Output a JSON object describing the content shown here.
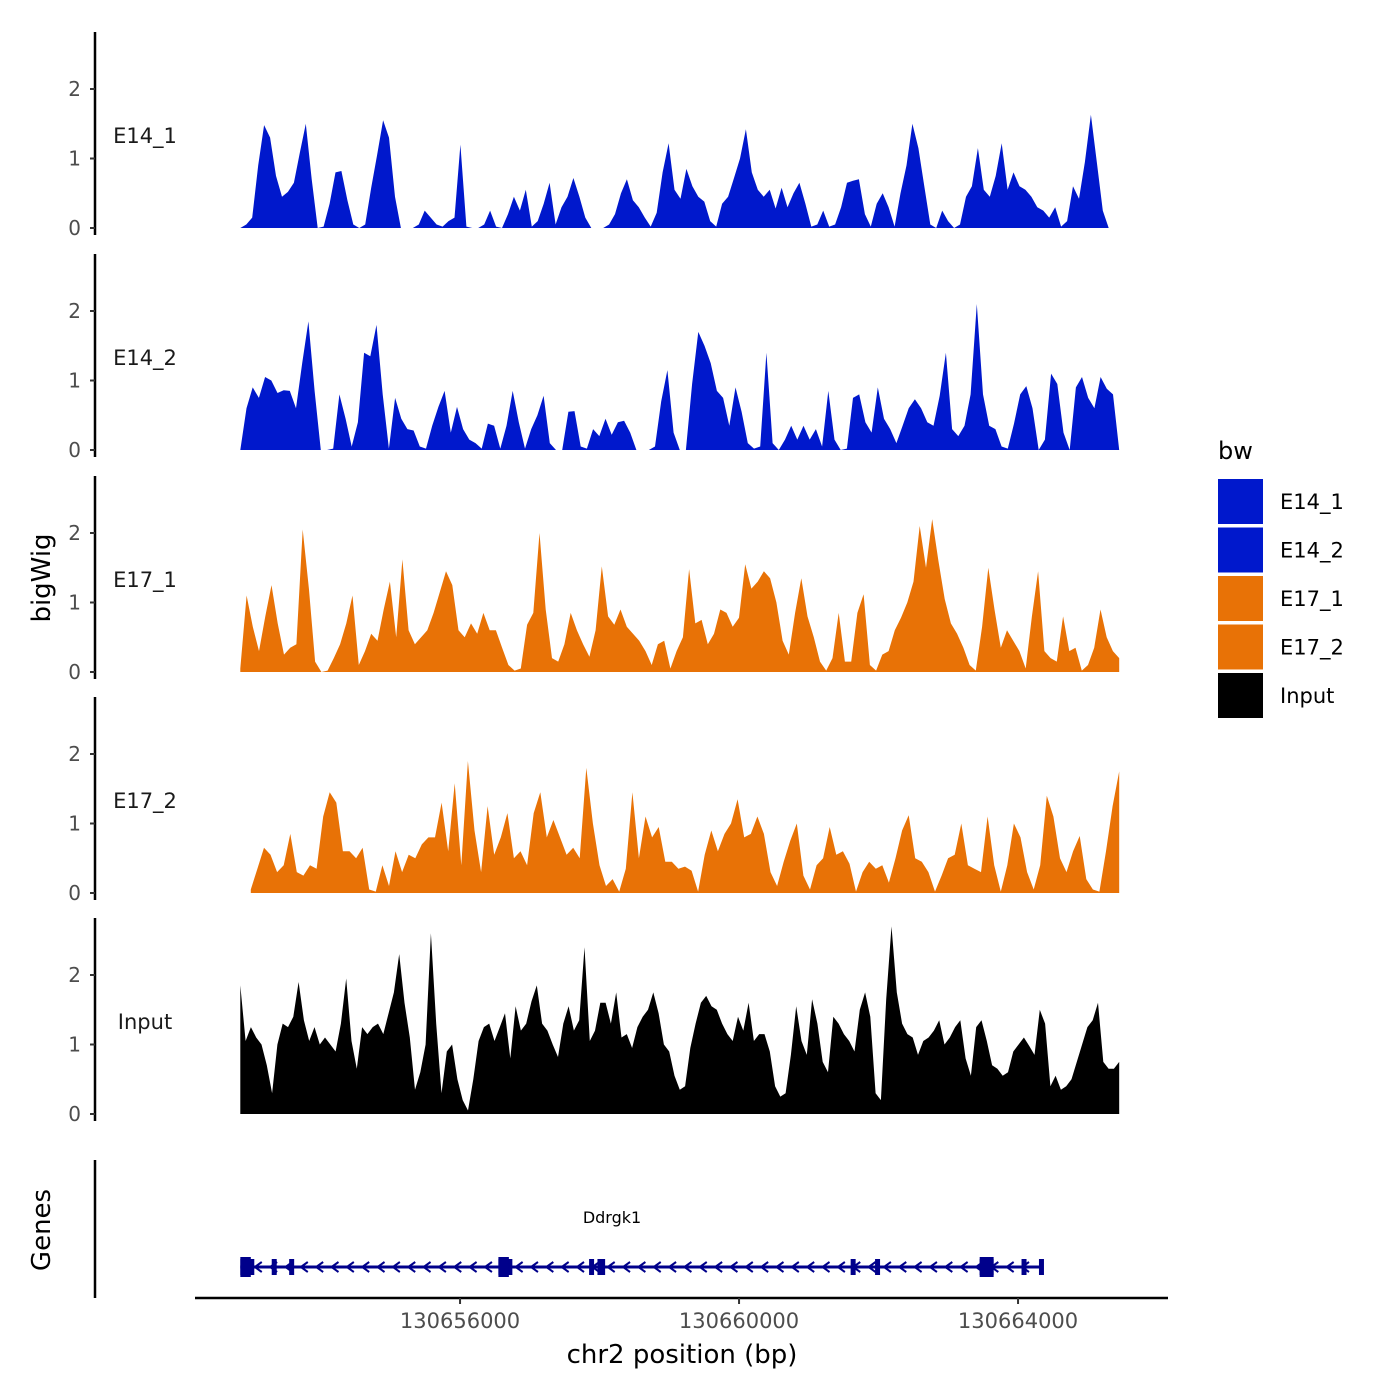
{
  "chart_data": {
    "type": "area",
    "title": "",
    "ylabel": "bigWig",
    "xlabel": "chr2 position (bp)",
    "genes_label": "Genes",
    "ylim": [
      0,
      2.8
    ],
    "y_ticks": [
      0,
      1,
      2
    ],
    "y_tick_labels": [
      "0",
      "1",
      "2"
    ],
    "xlim": [
      130652200,
      130666150
    ],
    "x_ticks": [
      130656000,
      130660000,
      130664000
    ],
    "x_tick_labels": [
      "130656000",
      "130660000",
      "130664000"
    ],
    "legend": {
      "title": "bw",
      "position": "right",
      "entries": [
        {
          "label": "E14_1",
          "color": "#0018cc"
        },
        {
          "label": "E14_2",
          "color": "#0018cc"
        },
        {
          "label": "E17_1",
          "color": "#e87206"
        },
        {
          "label": "E17_2",
          "color": "#e87206"
        },
        {
          "label": "Input",
          "color": "#000000"
        }
      ]
    },
    "tracks": [
      {
        "name": "E14_1",
        "label": "E14_1",
        "color": "#0018cc",
        "x_start": 130652850,
        "x_end": 130665300,
        "values": [
          0,
          0.05,
          0.15,
          0.9,
          1.48,
          1.3,
          0.75,
          0.45,
          0.52,
          0.65,
          1.08,
          1.5,
          0.7,
          0,
          0.02,
          0.35,
          0.8,
          0.82,
          0.4,
          0.05,
          0,
          0.05,
          0.58,
          1.05,
          1.55,
          1.3,
          0.45,
          0,
          0,
          0,
          0.05,
          0.25,
          0.15,
          0.05,
          0.02,
          0.1,
          0.15,
          1.2,
          0.02,
          0,
          0,
          0.05,
          0.25,
          0.02,
          0,
          0.2,
          0.45,
          0.25,
          0.55,
          0.02,
          0.1,
          0.35,
          0.65,
          0.05,
          0.3,
          0.45,
          0.72,
          0.45,
          0.15,
          0,
          0,
          0,
          0.05,
          0.2,
          0.5,
          0.7,
          0.4,
          0.3,
          0.15,
          0.02,
          0.22,
          0.8,
          1.22,
          0.55,
          0.42,
          0.85,
          0.6,
          0.45,
          0.38,
          0.1,
          0.02,
          0.35,
          0.45,
          0.72,
          1.0,
          1.42,
          0.8,
          0.55,
          0.45,
          0.55,
          0.28,
          0.58,
          0.3,
          0.5,
          0.65,
          0.35,
          0.02,
          0.05,
          0.25,
          0.02,
          0.05,
          0.3,
          0.65,
          0.68,
          0.7,
          0.2,
          0.02,
          0.35,
          0.5,
          0.3,
          0.02,
          0.5,
          0.9,
          1.5,
          1.15,
          0.6,
          0.05,
          0,
          0.25,
          0.1,
          0,
          0.05,
          0.45,
          0.6,
          1.15,
          0.55,
          0.45,
          0.75,
          1.22,
          0.55,
          0.8,
          0.6,
          0.55,
          0.45,
          0.3,
          0.25,
          0.15,
          0.3,
          0.02,
          0.1,
          0.6,
          0.42,
          0.95,
          1.63,
          0.95,
          0.25,
          0
        ]
      },
      {
        "name": "E14_2",
        "label": "E14_2",
        "color": "#0018cc",
        "x_start": 130652850,
        "x_end": 130665450,
        "values": [
          0,
          0.6,
          0.9,
          0.75,
          1.05,
          1.0,
          0.82,
          0.86,
          0.85,
          0.6,
          1.25,
          1.85,
          0.85,
          0,
          0,
          0.02,
          0.8,
          0.45,
          0.05,
          0.4,
          1.4,
          1.35,
          1.8,
          0.8,
          0.02,
          0.75,
          0.45,
          0.3,
          0.28,
          0.05,
          0.02,
          0.35,
          0.62,
          0.85,
          0.25,
          0.62,
          0.3,
          0.15,
          0.1,
          0.02,
          0.38,
          0.35,
          0.02,
          0.35,
          0.85,
          0.4,
          0.02,
          0.3,
          0.5,
          0.78,
          0.1,
          0,
          0,
          0.55,
          0.56,
          0.05,
          0.02,
          0.3,
          0.2,
          0.45,
          0.22,
          0.4,
          0.42,
          0.25,
          0,
          0,
          0,
          0.05,
          0.7,
          1.15,
          0.25,
          0,
          0,
          0.95,
          1.7,
          1.5,
          1.25,
          0.85,
          0.75,
          0.35,
          0.9,
          0.55,
          0.1,
          0.02,
          0.05,
          1.4,
          0.1,
          0,
          0.15,
          0.35,
          0.15,
          0.35,
          0.15,
          0.3,
          0.05,
          0.85,
          0.15,
          0,
          0.02,
          0.75,
          0.8,
          0.4,
          0.25,
          0.9,
          0.45,
          0.3,
          0.1,
          0.35,
          0.6,
          0.73,
          0.6,
          0.4,
          0.35,
          0.78,
          1.4,
          0.3,
          0.2,
          0.35,
          0.8,
          2.1,
          0.8,
          0.35,
          0.3,
          0.05,
          0.02,
          0.38,
          0.8,
          0.92,
          0.6,
          0,
          0.15,
          1.1,
          0.95,
          0.25,
          0,
          0.9,
          1.05,
          0.75,
          0.6,
          1.05,
          0.88,
          0.8,
          0
        ]
      },
      {
        "name": "E17_1",
        "label": "E17_1",
        "color": "#e87206",
        "x_start": 130652850,
        "x_end": 130665450,
        "values": [
          0.05,
          1.1,
          0.65,
          0.3,
          0.8,
          1.25,
          0.7,
          0.25,
          0.35,
          0.4,
          2.05,
          1.2,
          0.15,
          0,
          0.02,
          0.2,
          0.4,
          0.7,
          1.1,
          0.1,
          0.3,
          0.55,
          0.45,
          0.9,
          1.3,
          0.5,
          1.62,
          0.6,
          0.4,
          0.5,
          0.6,
          0.85,
          1.15,
          1.45,
          1.25,
          0.6,
          0.5,
          0.7,
          0.55,
          0.85,
          0.6,
          0.6,
          0.35,
          0.1,
          0.02,
          0.05,
          0.68,
          0.85,
          2.0,
          0.9,
          0.2,
          0.15,
          0.4,
          0.85,
          0.6,
          0.4,
          0.22,
          0.6,
          1.52,
          0.8,
          0.68,
          0.9,
          0.65,
          0.55,
          0.45,
          0.3,
          0.1,
          0.4,
          0.45,
          0.05,
          0.3,
          0.5,
          1.48,
          0.7,
          0.75,
          0.4,
          0.55,
          0.9,
          0.85,
          0.65,
          0.78,
          1.55,
          1.2,
          1.3,
          1.45,
          1.35,
          1.0,
          0.45,
          0.25,
          0.85,
          1.35,
          0.8,
          0.5,
          0.15,
          0.02,
          0.2,
          0.85,
          0.15,
          0.15,
          0.85,
          1.12,
          0.1,
          0.02,
          0.25,
          0.3,
          0.6,
          0.78,
          1.0,
          1.3,
          2.1,
          1.5,
          2.2,
          1.6,
          1.05,
          0.7,
          0.55,
          0.35,
          0.1,
          0.02,
          0.65,
          1.5,
          0.9,
          0.35,
          0.6,
          0.45,
          0.3,
          0.05,
          0.8,
          1.45,
          0.3,
          0.2,
          0.15,
          0.8,
          0.3,
          0.35,
          0.02,
          0.1,
          0.35,
          0.9,
          0.5,
          0.3,
          0.2
        ]
      },
      {
        "name": "E17_2",
        "label": "E17_2",
        "color": "#e87206",
        "x_start": 130653000,
        "x_end": 130665450,
        "values": [
          0.05,
          0.35,
          0.65,
          0.55,
          0.3,
          0.4,
          0.85,
          0.3,
          0.25,
          0.4,
          0.35,
          1.1,
          1.45,
          1.3,
          0.6,
          0.6,
          0.5,
          0.65,
          0.05,
          0.02,
          0.4,
          0.1,
          0.6,
          0.3,
          0.55,
          0.5,
          0.7,
          0.8,
          0.8,
          1.3,
          0.6,
          1.58,
          0.4,
          1.9,
          0.9,
          0.3,
          1.25,
          0.55,
          0.8,
          1.15,
          0.5,
          0.6,
          0.4,
          1.15,
          1.45,
          0.8,
          1.05,
          0.8,
          0.55,
          0.65,
          0.5,
          1.8,
          1.0,
          0.4,
          0.1,
          0.2,
          0.02,
          0.35,
          1.45,
          0.5,
          1.1,
          0.8,
          0.95,
          0.45,
          0.45,
          0.35,
          0.38,
          0.32,
          0.02,
          0.55,
          0.9,
          0.6,
          0.85,
          1.0,
          1.35,
          0.8,
          0.85,
          1.1,
          0.85,
          0.3,
          0.1,
          0.45,
          0.75,
          1.0,
          0.25,
          0.05,
          0.4,
          0.5,
          0.95,
          0.55,
          0.6,
          0.42,
          0.02,
          0.3,
          0.45,
          0.35,
          0.4,
          0.15,
          0.5,
          0.9,
          1.12,
          0.5,
          0.45,
          0.3,
          0.02,
          0.25,
          0.5,
          0.55,
          1.0,
          0.4,
          0.35,
          0.3,
          1.1,
          0.4,
          0.02,
          0.4,
          1.0,
          0.8,
          0.3,
          0.05,
          0.4,
          1.4,
          1.1,
          0.5,
          0.3,
          0.6,
          0.82,
          0.2,
          0.05,
          0.02,
          0.6,
          1.25,
          1.75
        ]
      },
      {
        "name": "Input",
        "label": "Input",
        "color": "#000000",
        "x_start": 130652850,
        "x_end": 130665450,
        "values": [
          1.85,
          1.05,
          1.25,
          1.1,
          1.0,
          0.7,
          0.3,
          1.0,
          1.3,
          1.25,
          1.4,
          1.9,
          1.35,
          1.05,
          1.25,
          1.0,
          1.1,
          1.0,
          0.9,
          1.3,
          1.95,
          1.05,
          0.65,
          1.25,
          1.15,
          1.25,
          1.3,
          1.15,
          1.45,
          1.75,
          2.3,
          1.6,
          1.1,
          0.35,
          0.6,
          1.0,
          2.6,
          1.3,
          0.3,
          0.9,
          1.0,
          0.5,
          0.2,
          0.05,
          0.5,
          1.05,
          1.25,
          1.3,
          1.05,
          1.25,
          1.45,
          0.8,
          1.55,
          1.2,
          1.3,
          1.62,
          1.85,
          1.3,
          1.2,
          1.0,
          0.82,
          1.3,
          1.55,
          1.2,
          1.35,
          2.4,
          1.05,
          1.2,
          1.6,
          1.6,
          1.3,
          1.75,
          1.1,
          1.15,
          0.95,
          1.25,
          1.4,
          1.5,
          1.75,
          1.45,
          1.0,
          0.9,
          0.55,
          0.35,
          0.4,
          0.95,
          1.3,
          1.6,
          1.7,
          1.55,
          1.5,
          1.3,
          1.15,
          1.05,
          1.4,
          1.2,
          1.6,
          1.05,
          1.15,
          1.15,
          0.9,
          0.4,
          0.25,
          0.3,
          0.85,
          1.55,
          1.05,
          0.85,
          1.65,
          1.3,
          0.75,
          0.6,
          1.4,
          1.3,
          1.15,
          1.05,
          0.9,
          1.5,
          1.75,
          1.4,
          0.3,
          0.2,
          1.65,
          2.7,
          1.75,
          1.3,
          1.15,
          1.1,
          0.85,
          1.05,
          1.1,
          1.2,
          1.35,
          1.0,
          1.1,
          1.25,
          1.35,
          0.8,
          0.55,
          1.25,
          1.35,
          1.05,
          0.7,
          0.65,
          0.55,
          0.6,
          0.9,
          1.0,
          1.1,
          0.98,
          0.85,
          1.5,
          1.3,
          0.4,
          0.55,
          0.35,
          0.4,
          0.5,
          0.75,
          1.0,
          1.25,
          1.35,
          1.6,
          0.75,
          0.65,
          0.65,
          0.75
        ]
      }
    ],
    "gene": {
      "name": "Ddrgk1",
      "strand": "-",
      "start": 130652850,
      "end": 130664350,
      "exons": [
        [
          130652850,
          130653050
        ],
        [
          130653300,
          130653350
        ],
        [
          130653550,
          130653600
        ],
        [
          130656550,
          130656750
        ],
        [
          130657850,
          130657870
        ],
        [
          130657970,
          130658080
        ],
        [
          130661600,
          130661650
        ],
        [
          130661950,
          130662000
        ],
        [
          130663450,
          130663650
        ],
        [
          130664050,
          130664100
        ],
        [
          130664300,
          130664350
        ]
      ],
      "thick_exons": [
        [
          130652850,
          130653000
        ],
        [
          130656550,
          130656700
        ],
        [
          130663450,
          130663650
        ]
      ]
    }
  }
}
